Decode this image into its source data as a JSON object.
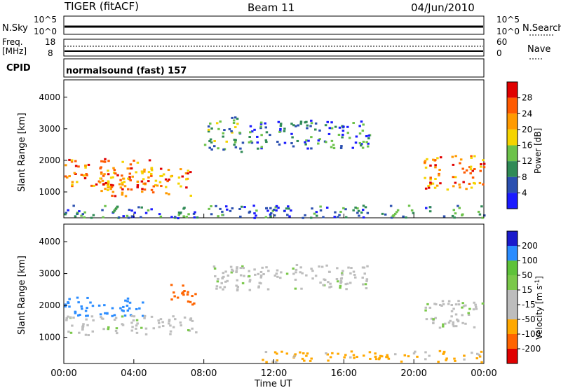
{
  "header": {
    "station": "TIGER (fitACF)",
    "beam": "Beam 11",
    "date": "04/Jun/2010"
  },
  "meta_panels": {
    "nsky": {
      "label": "N.Sky",
      "ticks": [
        "10^5",
        "10^0"
      ]
    },
    "nsearch": {
      "label": "N.Search",
      "ticks": [
        "10^5",
        "10^0"
      ]
    },
    "freq": {
      "label_line1": "Freq.",
      "label_line2": "[MHz]",
      "ticks": [
        "18",
        "8"
      ]
    },
    "nave": {
      "label": "Nave",
      "ticks": [
        "60",
        "0"
      ]
    },
    "cpid": {
      "label": "CPID",
      "value": "normalsound (fast) 157"
    }
  },
  "colors": {
    "power_scale": [
      "#1a1aff",
      "#2a4fb0",
      "#2f8a55",
      "#6cc24a",
      "#f5d400",
      "#ff9a00",
      "#ff5a00",
      "#e00000"
    ],
    "velocity_scale": [
      "#e00000",
      "#ff6400",
      "#ffa800",
      "#bdbdbd",
      "#bdbdbd",
      "#7ac84a",
      "#5ec23a",
      "#2a8cff",
      "#1a1acc"
    ]
  },
  "chart_data": [
    {
      "type": "heatmap",
      "name": "Power",
      "xlabel": "Time UT",
      "ylabel": "Slant Range [km]",
      "colorbar_label": "Power [dB]",
      "colorbar_ticks": [
        "28",
        "24",
        "20",
        "16",
        "12",
        "8",
        "4"
      ],
      "xlim_hours": [
        0,
        24
      ],
      "ylim_km": [
        180,
        4550
      ],
      "y_ticks": [
        "1000",
        "2000",
        "3000",
        "4000"
      ],
      "features": [
        {
          "t": [
            0.0,
            5.0
          ],
          "r": [
            1200,
            2100
          ],
          "level": "high"
        },
        {
          "t": [
            2.0,
            7.2
          ],
          "r": [
            900,
            1800
          ],
          "level": "high"
        },
        {
          "t": [
            8.0,
            10.2
          ],
          "r": [
            2300,
            3400
          ],
          "level": "medium"
        },
        {
          "t": [
            10.5,
            17.5
          ],
          "r": [
            2400,
            3300
          ],
          "level": "low"
        },
        {
          "t": [
            20.5,
            24.0
          ],
          "r": [
            1100,
            2200
          ],
          "level": "high"
        },
        {
          "t": [
            0.0,
            24.0
          ],
          "r": [
            200,
            600
          ],
          "level": "low"
        }
      ]
    },
    {
      "type": "heatmap",
      "name": "Velocity",
      "xlabel": "Time UT",
      "ylabel": "Slant Range [km]",
      "colorbar_label": "Velocity [m s^-1]",
      "colorbar_ticks": [
        "200",
        "100",
        "50",
        "15",
        "-15",
        "-50",
        "-100",
        "-200"
      ],
      "xlim_hours": [
        0,
        24
      ],
      "ylim_km": [
        180,
        4550
      ],
      "y_ticks": [
        "1000",
        "2000",
        "3000",
        "4000"
      ],
      "x_ticks": [
        "00:00",
        "04:00",
        "08:00",
        "12:00",
        "16:00",
        "20:00",
        "00:00"
      ],
      "features": [
        {
          "t": [
            0.0,
            4.5
          ],
          "r": [
            1700,
            2300
          ],
          "velocity": 150
        },
        {
          "t": [
            0.0,
            7.5
          ],
          "r": [
            1100,
            1700
          ],
          "velocity": 0
        },
        {
          "t": [
            6.0,
            7.5
          ],
          "r": [
            2000,
            2700
          ],
          "velocity": -180
        },
        {
          "t": [
            8.5,
            17.5
          ],
          "r": [
            2500,
            3300
          ],
          "velocity": 0
        },
        {
          "t": [
            20.5,
            24.0
          ],
          "r": [
            1300,
            2200
          ],
          "velocity": 0
        },
        {
          "t": [
            11.0,
            24.0
          ],
          "r": [
            250,
            600
          ],
          "velocity": -60
        }
      ]
    }
  ]
}
